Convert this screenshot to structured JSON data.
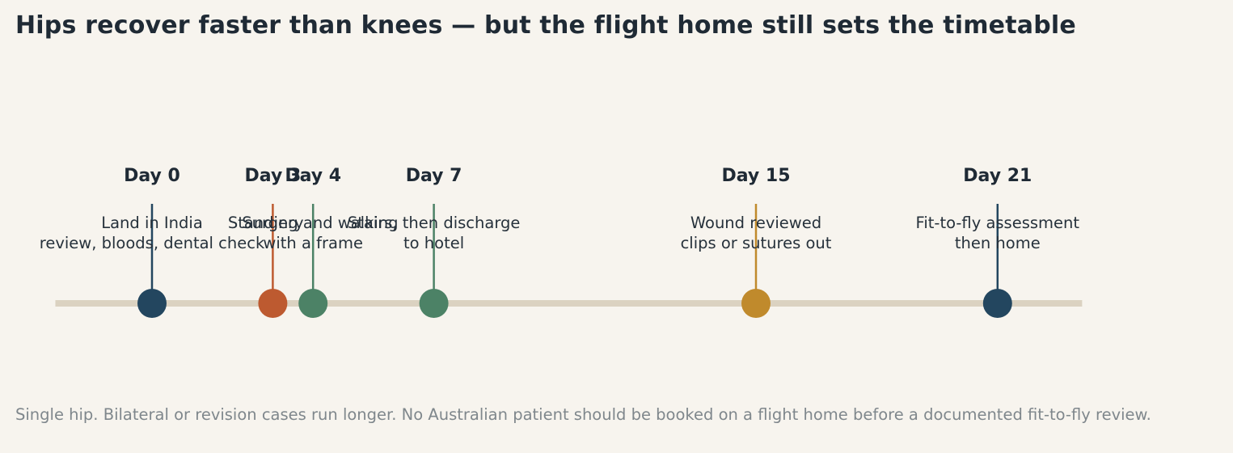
{
  "title": "Hips recover faster than knees — but the flight home still sets the timetable",
  "footnote": "Single hip. Bilateral or revision cases run longer. No Australian patient should be booked on a flight home before a documented fit-to-fly review.",
  "chart_data": {
    "type": "timeline",
    "x_unit": "day",
    "xlim": [
      -2.4,
      23.1
    ],
    "grid": false,
    "legend": "none",
    "track_color": "#dbd2c1",
    "events": [
      {
        "day": 0,
        "label": "Day 0",
        "lines": [
          "Land in India",
          "review, bloods, dental check"
        ],
        "color": "#23465f"
      },
      {
        "day": 3,
        "label": "Day 3",
        "lines": [
          "Surgery"
        ],
        "color": "#bd5a30"
      },
      {
        "day": 4,
        "label": "Day 4",
        "lines": [
          "Standing and walking",
          "with a frame"
        ],
        "color": "#4c8266"
      },
      {
        "day": 7,
        "label": "Day 7",
        "lines": [
          "Stairs, then discharge",
          "to hotel"
        ],
        "color": "#4c8266"
      },
      {
        "day": 15,
        "label": "Day 15",
        "lines": [
          "Wound reviewed",
          "clips or sutures out"
        ],
        "color": "#c08a2c"
      },
      {
        "day": 21,
        "label": "Day 21",
        "lines": [
          "Fit-to-fly assessment",
          "then home"
        ],
        "color": "#23465f"
      }
    ]
  }
}
